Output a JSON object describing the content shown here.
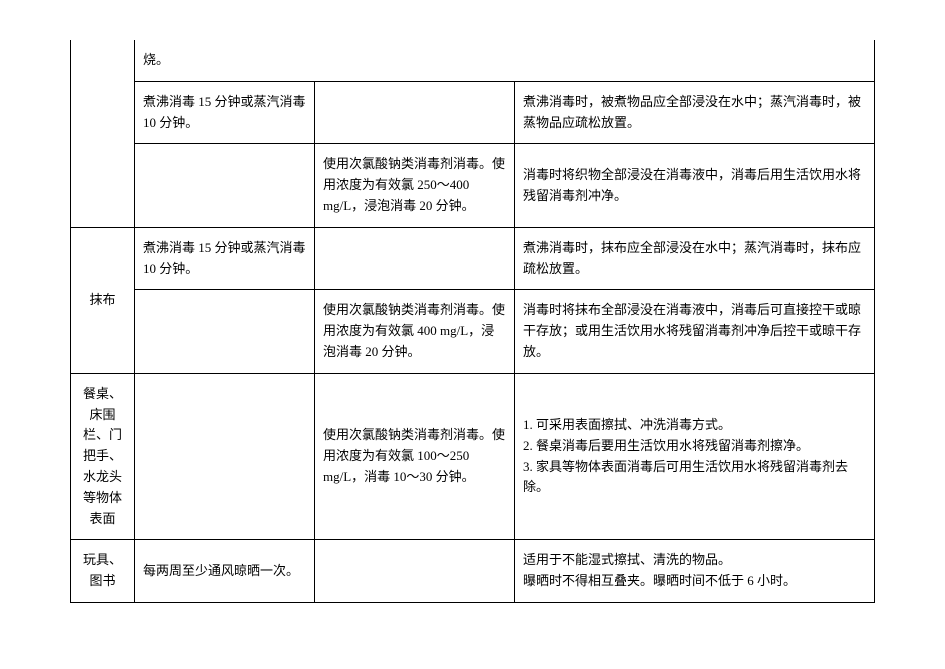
{
  "table": {
    "columns": {
      "col1_width": 64,
      "col2_width": 180,
      "col3_width": 200
    },
    "border_color": "#000000",
    "background_color": "#ffffff",
    "font_family": "SimSun",
    "font_size": 13,
    "rows": [
      {
        "c1": "",
        "c2": "烧。",
        "c3": "",
        "c4": ""
      },
      {
        "c1": "",
        "c2": "煮沸消毒 15 分钟或蒸汽消毒 10 分钟。",
        "c3": "",
        "c4": "煮沸消毒时，被煮物品应全部浸没在水中；蒸汽消毒时，被蒸物品应疏松放置。"
      },
      {
        "c1": "",
        "c2": "",
        "c3": "使用次氯酸钠类消毒剂消毒。使用浓度为有效氯 250～400 mg/L，浸泡消毒 20 分钟。",
        "c4": "消毒时将织物全部浸没在消毒液中，消毒后用生活饮用水将残留消毒剂冲净。"
      },
      {
        "c1": "抹布",
        "c2": "煮沸消毒 15 分钟或蒸汽消毒 10 分钟。",
        "c3": "",
        "c4": "煮沸消毒时，抹布应全部浸没在水中；蒸汽消毒时，抹布应疏松放置。"
      },
      {
        "c1": "",
        "c2": "",
        "c3": "使用次氯酸钠类消毒剂消毒。使用浓度为有效氯 400 mg/L，浸泡消毒 20 分钟。",
        "c4": "消毒时将抹布全部浸没在消毒液中，消毒后可直接控干或晾干存放；或用生活饮用水将残留消毒剂冲净后控干或晾干存放。"
      },
      {
        "c1": "餐桌、床围栏、门把手、水龙头等物体表面",
        "c2": "",
        "c3": "使用次氯酸钠类消毒剂消毒。使用浓度为有效氯 100～250 mg/L，消毒 10～30 分钟。",
        "c4": "1. 可采用表面擦拭、冲洗消毒方式。\n2. 餐桌消毒后要用生活饮用水将残留消毒剂擦净。\n3. 家具等物体表面消毒后可用生活饮用水将残留消毒剂去除。"
      },
      {
        "c1": "玩具、图书",
        "c2": "每两周至少通风晾晒一次。",
        "c3": "",
        "c4": "适用于不能湿式擦拭、清洗的物品。\n曝晒时不得相互叠夹。曝晒时间不低于 6 小时。"
      }
    ]
  }
}
